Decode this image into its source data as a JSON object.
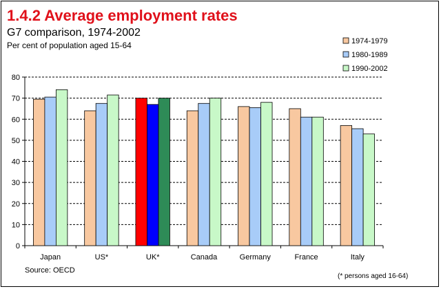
{
  "chart_data": {
    "type": "bar",
    "title": "1.4.2 Average employment rates",
    "subtitle": "G7 comparison, 1974-2002",
    "ylabel_note": "Per cent of population aged 15-64",
    "categories": [
      "Japan",
      "US*",
      "UK*",
      "Canada",
      "Germany",
      "France",
      "Italy"
    ],
    "series": [
      {
        "name": "1974-1979",
        "color": "#f8c8a0",
        "values": [
          69.5,
          64,
          70,
          64,
          66,
          65,
          57
        ]
      },
      {
        "name": "1980-1989",
        "color": "#a8ccf8",
        "values": [
          70.5,
          67.5,
          67,
          67.5,
          65.5,
          61,
          55.5
        ]
      },
      {
        "name": "1990-2002",
        "color": "#c8f8c8",
        "values": [
          74,
          71.5,
          70,
          70,
          68,
          61,
          53
        ]
      }
    ],
    "highlight": {
      "category": "UK*",
      "colors": [
        "#ff0000",
        "#0000ff",
        "#2e8b57"
      ]
    },
    "ylim": [
      0,
      80
    ],
    "yticks": [
      0,
      10,
      20,
      30,
      40,
      50,
      60,
      70,
      80
    ],
    "grid": true,
    "legend_position": "top-right",
    "source": "Source: OECD",
    "footnote": "(* persons aged 16-64)"
  }
}
